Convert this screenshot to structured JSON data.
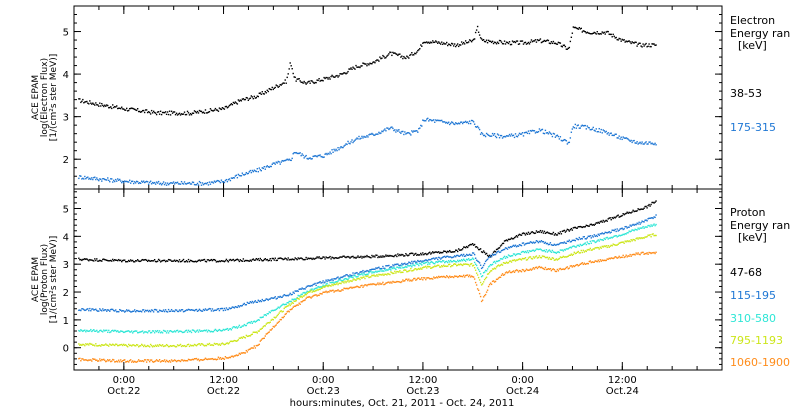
{
  "chart_data": [
    {
      "type": "scatter",
      "ylabel_lines": [
        "ACE EPAM",
        "log(Electron Flux)",
        "[1/(cm²s ster MeV)]"
      ],
      "legend_title": [
        "Electron",
        "Energy ran",
        "[keV]"
      ],
      "ylim": [
        1.3,
        5.6
      ],
      "yticks": [
        2,
        3,
        4,
        5
      ],
      "series": [
        {
          "name": "38-53",
          "color": "#000000",
          "points": [
            [
              -5.5,
              3.4
            ],
            [
              -3,
              3.3
            ],
            [
              0,
              3.2
            ],
            [
              4,
              3.1
            ],
            [
              8,
              3.1
            ],
            [
              10,
              3.15
            ],
            [
              12,
              3.2
            ],
            [
              14,
              3.4
            ],
            [
              16,
              3.5
            ],
            [
              18,
              3.7
            ],
            [
              19.5,
              3.85
            ],
            [
              20,
              4.3
            ],
            [
              20.5,
              3.9
            ],
            [
              22,
              3.8
            ],
            [
              24,
              3.9
            ],
            [
              26,
              4.0
            ],
            [
              28,
              4.2
            ],
            [
              30,
              4.3
            ],
            [
              32,
              4.5
            ],
            [
              34,
              4.4
            ],
            [
              35.5,
              4.6
            ],
            [
              36,
              4.8
            ],
            [
              38,
              4.75
            ],
            [
              40,
              4.7
            ],
            [
              42,
              4.8
            ],
            [
              42.5,
              5.1
            ],
            [
              43,
              4.8
            ],
            [
              46,
              4.75
            ],
            [
              48,
              4.75
            ],
            [
              50,
              4.8
            ],
            [
              52,
              4.75
            ],
            [
              53.5,
              4.6
            ],
            [
              54,
              5.1
            ],
            [
              56,
              5.0
            ],
            [
              58,
              5.0
            ],
            [
              60,
              4.8
            ],
            [
              62,
              4.7
            ],
            [
              64,
              4.7
            ]
          ]
        },
        {
          "name": "175-315",
          "color": "#1f77d4",
          "points": [
            [
              -5.5,
              1.6
            ],
            [
              -3,
              1.55
            ],
            [
              0,
              1.5
            ],
            [
              4,
              1.45
            ],
            [
              8,
              1.45
            ],
            [
              10,
              1.45
            ],
            [
              12,
              1.5
            ],
            [
              14,
              1.65
            ],
            [
              16,
              1.75
            ],
            [
              18,
              1.9
            ],
            [
              20,
              2.0
            ],
            [
              20.5,
              2.2
            ],
            [
              22,
              2.05
            ],
            [
              24,
              2.1
            ],
            [
              26,
              2.3
            ],
            [
              28,
              2.5
            ],
            [
              30,
              2.6
            ],
            [
              32,
              2.75
            ],
            [
              34,
              2.6
            ],
            [
              35.5,
              2.7
            ],
            [
              36,
              2.95
            ],
            [
              38,
              2.9
            ],
            [
              40,
              2.85
            ],
            [
              42,
              2.9
            ],
            [
              43,
              2.6
            ],
            [
              46,
              2.55
            ],
            [
              48,
              2.6
            ],
            [
              50,
              2.7
            ],
            [
              52,
              2.55
            ],
            [
              53.5,
              2.4
            ],
            [
              54,
              2.8
            ],
            [
              56,
              2.75
            ],
            [
              58,
              2.65
            ],
            [
              60,
              2.5
            ],
            [
              62,
              2.4
            ],
            [
              64,
              2.4
            ]
          ]
        }
      ]
    },
    {
      "type": "scatter",
      "ylabel_lines": [
        "ACE EPAM",
        "log(Proton Flux)",
        "[1/(cm²s ster MeV)]"
      ],
      "legend_title": [
        "Proton",
        "Energy ran",
        "[keV]"
      ],
      "ylim": [
        -0.8,
        5.7
      ],
      "yticks": [
        0,
        1,
        2,
        3,
        4,
        5
      ],
      "series": [
        {
          "name": "47-68",
          "color": "#000000",
          "points": [
            [
              -5.5,
              3.2
            ],
            [
              0,
              3.15
            ],
            [
              6,
              3.15
            ],
            [
              12,
              3.15
            ],
            [
              18,
              3.2
            ],
            [
              24,
              3.25
            ],
            [
              30,
              3.3
            ],
            [
              36,
              3.4
            ],
            [
              40,
              3.5
            ],
            [
              42,
              3.75
            ],
            [
              43,
              3.5
            ],
            [
              44,
              3.3
            ],
            [
              46,
              3.9
            ],
            [
              48,
              4.1
            ],
            [
              50,
              4.2
            ],
            [
              52,
              4.1
            ],
            [
              54,
              4.3
            ],
            [
              56,
              4.4
            ],
            [
              58,
              4.6
            ],
            [
              60,
              4.8
            ],
            [
              62,
              5.0
            ],
            [
              63,
              5.1
            ],
            [
              64,
              5.3
            ]
          ]
        },
        {
          "name": "115-195",
          "color": "#1f77d4",
          "points": [
            [
              -5.5,
              1.4
            ],
            [
              0,
              1.35
            ],
            [
              6,
              1.35
            ],
            [
              12,
              1.4
            ],
            [
              14,
              1.55
            ],
            [
              16,
              1.7
            ],
            [
              18,
              1.8
            ],
            [
              20,
              1.95
            ],
            [
              22,
              2.2
            ],
            [
              24,
              2.4
            ],
            [
              26,
              2.55
            ],
            [
              28,
              2.7
            ],
            [
              30,
              2.85
            ],
            [
              32,
              2.95
            ],
            [
              34,
              3.05
            ],
            [
              36,
              3.15
            ],
            [
              38,
              3.25
            ],
            [
              40,
              3.3
            ],
            [
              42,
              3.4
            ],
            [
              43,
              2.9
            ],
            [
              44,
              3.3
            ],
            [
              46,
              3.6
            ],
            [
              48,
              3.75
            ],
            [
              50,
              3.85
            ],
            [
              52,
              3.7
            ],
            [
              54,
              3.9
            ],
            [
              56,
              4.0
            ],
            [
              58,
              4.15
            ],
            [
              60,
              4.3
            ],
            [
              62,
              4.5
            ],
            [
              64,
              4.75
            ]
          ]
        },
        {
          "name": "310-580",
          "color": "#2ee6d6",
          "points": [
            [
              -5.5,
              0.65
            ],
            [
              0,
              0.6
            ],
            [
              6,
              0.6
            ],
            [
              12,
              0.65
            ],
            [
              14,
              0.8
            ],
            [
              16,
              1.0
            ],
            [
              18,
              1.4
            ],
            [
              20,
              1.7
            ],
            [
              22,
              2.05
            ],
            [
              24,
              2.25
            ],
            [
              26,
              2.45
            ],
            [
              28,
              2.6
            ],
            [
              30,
              2.75
            ],
            [
              32,
              2.85
            ],
            [
              34,
              2.95
            ],
            [
              36,
              3.05
            ],
            [
              38,
              3.1
            ],
            [
              40,
              3.15
            ],
            [
              42,
              3.2
            ],
            [
              43,
              2.6
            ],
            [
              44,
              3.0
            ],
            [
              46,
              3.3
            ],
            [
              48,
              3.45
            ],
            [
              50,
              3.55
            ],
            [
              52,
              3.45
            ],
            [
              54,
              3.65
            ],
            [
              56,
              3.8
            ],
            [
              58,
              3.95
            ],
            [
              60,
              4.1
            ],
            [
              62,
              4.3
            ],
            [
              64,
              4.45
            ]
          ]
        },
        {
          "name": "795-1193",
          "color": "#cce61a",
          "points": [
            [
              -5.5,
              0.15
            ],
            [
              0,
              0.1
            ],
            [
              6,
              0.1
            ],
            [
              12,
              0.15
            ],
            [
              14,
              0.35
            ],
            [
              16,
              0.6
            ],
            [
              18,
              1.1
            ],
            [
              20,
              1.6
            ],
            [
              22,
              2.0
            ],
            [
              24,
              2.2
            ],
            [
              26,
              2.35
            ],
            [
              28,
              2.5
            ],
            [
              30,
              2.6
            ],
            [
              32,
              2.7
            ],
            [
              34,
              2.8
            ],
            [
              36,
              2.9
            ],
            [
              38,
              2.95
            ],
            [
              40,
              3.0
            ],
            [
              42,
              3.0
            ],
            [
              43,
              2.3
            ],
            [
              44,
              2.8
            ],
            [
              46,
              3.1
            ],
            [
              48,
              3.2
            ],
            [
              50,
              3.3
            ],
            [
              52,
              3.2
            ],
            [
              54,
              3.4
            ],
            [
              56,
              3.55
            ],
            [
              58,
              3.65
            ],
            [
              60,
              3.8
            ],
            [
              62,
              3.95
            ],
            [
              64,
              4.1
            ]
          ]
        },
        {
          "name": "1060-1900",
          "color": "#ff8c1a",
          "points": [
            [
              -5.5,
              -0.4
            ],
            [
              0,
              -0.45
            ],
            [
              6,
              -0.45
            ],
            [
              12,
              -0.35
            ],
            [
              14,
              -0.2
            ],
            [
              16,
              0.1
            ],
            [
              18,
              0.8
            ],
            [
              20,
              1.4
            ],
            [
              22,
              1.8
            ],
            [
              24,
              2.0
            ],
            [
              26,
              2.1
            ],
            [
              28,
              2.2
            ],
            [
              30,
              2.3
            ],
            [
              32,
              2.35
            ],
            [
              34,
              2.45
            ],
            [
              36,
              2.5
            ],
            [
              38,
              2.55
            ],
            [
              40,
              2.6
            ],
            [
              42,
              2.6
            ],
            [
              43,
              1.7
            ],
            [
              44,
              2.3
            ],
            [
              46,
              2.75
            ],
            [
              48,
              2.8
            ],
            [
              50,
              2.9
            ],
            [
              52,
              2.8
            ],
            [
              54,
              2.95
            ],
            [
              56,
              3.1
            ],
            [
              58,
              3.2
            ],
            [
              60,
              3.3
            ],
            [
              62,
              3.4
            ],
            [
              64,
              3.45
            ]
          ]
        }
      ]
    }
  ],
  "xaxis": {
    "xlim": [
      -6,
      72
    ],
    "major_ticks": [
      0,
      12,
      24,
      36,
      48,
      60
    ],
    "tick_labels": [
      {
        "time": "0:00",
        "date": "Oct.22"
      },
      {
        "time": "12:00",
        "date": "Oct.22"
      },
      {
        "time": "0:00",
        "date": "Oct.23"
      },
      {
        "time": "12:00",
        "date": "Oct.23"
      },
      {
        "time": "0:00",
        "date": "Oct.24"
      },
      {
        "time": "12:00",
        "date": "Oct.24"
      }
    ],
    "minor_step": 3,
    "title": "hours:minutes, Oct. 21, 2011 - Oct. 24, 2011"
  }
}
